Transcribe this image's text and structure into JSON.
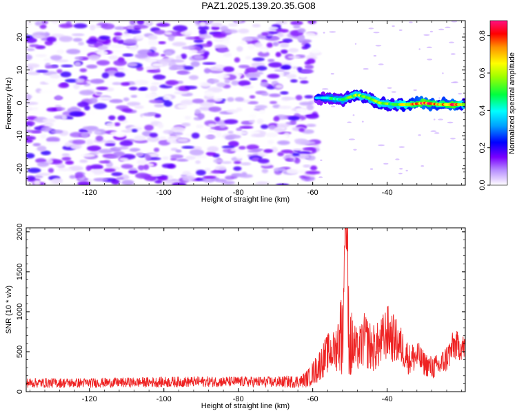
{
  "title": "PAZ1.2025.139.20.35.G08",
  "chart_data": [
    {
      "type": "heatmap",
      "xlabel": "Height of straight line (km)",
      "ylabel": "Frequency (Hz)",
      "xlim": [
        -137,
        -19
      ],
      "ylim": [
        -25,
        25
      ],
      "xticks": [
        -120,
        -100,
        -80,
        -60,
        -40
      ],
      "yticks": [
        -20,
        -10,
        0,
        10,
        20
      ],
      "xtick_labels": [
        "-120",
        "-100",
        "-80",
        "-60",
        "-40"
      ],
      "ytick_labels": [
        "-20",
        "-10",
        "0",
        "10",
        "20"
      ],
      "colorbar": {
        "label": "Normalized spectral amplitude",
        "range": [
          0,
          0.88
        ],
        "ticks": [
          0.0,
          0.2,
          0.4,
          0.6,
          0.8
        ],
        "tick_labels": [
          "0.0",
          "0.2",
          "0.4",
          "0.6",
          "0.8"
        ],
        "colormap": "rainbow"
      },
      "noise_region": {
        "x_range": [
          -137,
          -59
        ],
        "freq_range": [
          -25,
          25
        ],
        "amplitude_range": [
          0.0,
          0.2
        ]
      },
      "signal_track": [
        {
          "x": -59,
          "freq": 1.5,
          "amp": 0.35
        },
        {
          "x": -56,
          "freq": 1.5,
          "amp": 0.45
        },
        {
          "x": -52,
          "freq": 1.0,
          "amp": 0.5
        },
        {
          "x": -48,
          "freq": 2.5,
          "amp": 0.6
        },
        {
          "x": -45,
          "freq": 1.5,
          "amp": 0.55
        },
        {
          "x": -42,
          "freq": 0.0,
          "amp": 0.6
        },
        {
          "x": -38,
          "freq": -0.5,
          "amp": 0.55
        },
        {
          "x": -34,
          "freq": -0.5,
          "amp": 0.7
        },
        {
          "x": -30,
          "freq": 0.0,
          "amp": 0.85
        },
        {
          "x": -26,
          "freq": -0.5,
          "amp": 0.7
        },
        {
          "x": -22,
          "freq": -0.5,
          "amp": 0.85
        },
        {
          "x": -19,
          "freq": -0.5,
          "amp": 0.5
        }
      ]
    },
    {
      "type": "line",
      "xlabel": "Height of straight line (km)",
      "ylabel": "SNR (10 * v/v)",
      "xlim": [
        -137,
        -19
      ],
      "ylim": [
        0,
        2050
      ],
      "xticks": [
        -120,
        -100,
        -80,
        -60,
        -40
      ],
      "yticks": [
        0,
        500,
        1000,
        1500,
        2000
      ],
      "xtick_labels": [
        "-120",
        "-100",
        "-80",
        "-60",
        "-40"
      ],
      "ytick_labels": [
        "0",
        "500",
        "1000",
        "1500",
        "2000"
      ],
      "color": "#ee2222",
      "envelope": {
        "x": [
          -137,
          -130,
          -120,
          -110,
          -100,
          -90,
          -80,
          -70,
          -63,
          -61,
          -59,
          -56,
          -54,
          -52,
          -51,
          -50,
          -48,
          -46,
          -44,
          -42,
          -40,
          -38,
          -36,
          -34,
          -32,
          -30,
          -28,
          -26,
          -24,
          -22,
          -19
        ],
        "mean": [
          110,
          110,
          110,
          115,
          120,
          125,
          125,
          120,
          130,
          180,
          280,
          480,
          520,
          800,
          1300,
          600,
          500,
          650,
          540,
          580,
          750,
          650,
          550,
          400,
          450,
          350,
          300,
          320,
          420,
          580,
          550
        ],
        "spread": [
          60,
          60,
          60,
          60,
          65,
          65,
          65,
          70,
          80,
          120,
          180,
          250,
          250,
          600,
          800,
          500,
          250,
          350,
          300,
          300,
          350,
          300,
          250,
          200,
          200,
          150,
          150,
          150,
          180,
          200,
          150
        ]
      }
    }
  ]
}
